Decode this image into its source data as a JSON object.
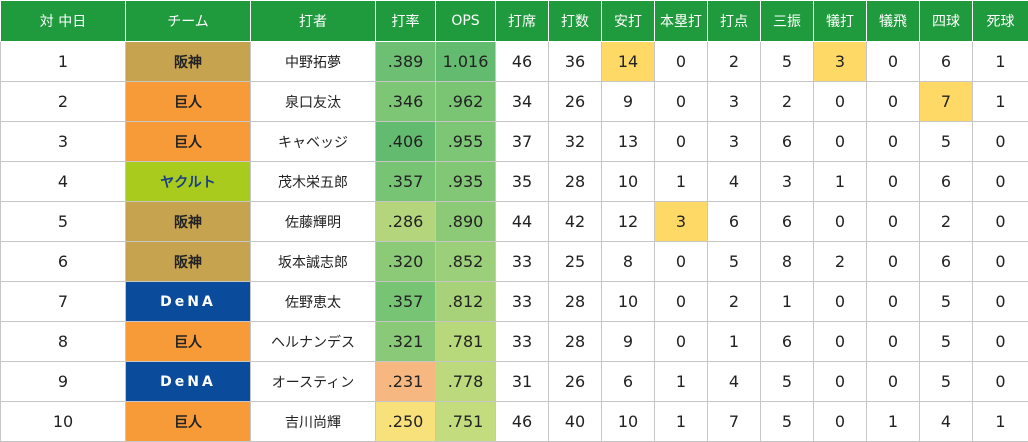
{
  "table": {
    "headers": [
      "対 中日",
      "チーム",
      "打者",
      "打率",
      "OPS",
      "打席",
      "打数",
      "安打",
      "本塁打",
      "打点",
      "三振",
      "犠打",
      "犠飛",
      "四球",
      "死球"
    ],
    "rows": [
      {
        "rank": "1",
        "team": "阪神",
        "batter": "中野拓夢",
        "avg": ".389",
        "ops": "1.016",
        "pa": "46",
        "ab": "36",
        "h": "14",
        "hr": "0",
        "rbi": "2",
        "so": "5",
        "sh": "3",
        "sf": "0",
        "bb": "6",
        "hbp": "1"
      },
      {
        "rank": "2",
        "team": "巨人",
        "batter": "泉口友汰",
        "avg": ".346",
        "ops": ".962",
        "pa": "34",
        "ab": "26",
        "h": "9",
        "hr": "0",
        "rbi": "3",
        "so": "2",
        "sh": "0",
        "sf": "0",
        "bb": "7",
        "hbp": "1"
      },
      {
        "rank": "3",
        "team": "巨人",
        "batter": "キャベッジ",
        "avg": ".406",
        "ops": ".955",
        "pa": "37",
        "ab": "32",
        "h": "13",
        "hr": "0",
        "rbi": "3",
        "so": "6",
        "sh": "0",
        "sf": "0",
        "bb": "5",
        "hbp": "0"
      },
      {
        "rank": "4",
        "team": "ヤクルト",
        "batter": "茂木栄五郎",
        "avg": ".357",
        "ops": ".935",
        "pa": "35",
        "ab": "28",
        "h": "10",
        "hr": "1",
        "rbi": "4",
        "so": "3",
        "sh": "1",
        "sf": "0",
        "bb": "6",
        "hbp": "0"
      },
      {
        "rank": "5",
        "team": "阪神",
        "batter": "佐藤輝明",
        "avg": ".286",
        "ops": ".890",
        "pa": "44",
        "ab": "42",
        "h": "12",
        "hr": "3",
        "rbi": "6",
        "so": "6",
        "sh": "0",
        "sf": "0",
        "bb": "2",
        "hbp": "0"
      },
      {
        "rank": "6",
        "team": "阪神",
        "batter": "坂本誠志郎",
        "avg": ".320",
        "ops": ".852",
        "pa": "33",
        "ab": "25",
        "h": "8",
        "hr": "0",
        "rbi": "5",
        "so": "8",
        "sh": "2",
        "sf": "0",
        "bb": "6",
        "hbp": "0"
      },
      {
        "rank": "7",
        "team": "DeNA",
        "batter": "佐野恵太",
        "avg": ".357",
        "ops": ".812",
        "pa": "33",
        "ab": "28",
        "h": "10",
        "hr": "0",
        "rbi": "2",
        "so": "1",
        "sh": "0",
        "sf": "0",
        "bb": "5",
        "hbp": "0"
      },
      {
        "rank": "8",
        "team": "巨人",
        "batter": "ヘルナンデス",
        "avg": ".321",
        "ops": ".781",
        "pa": "33",
        "ab": "28",
        "h": "9",
        "hr": "0",
        "rbi": "1",
        "so": "6",
        "sh": "0",
        "sf": "0",
        "bb": "5",
        "hbp": "0"
      },
      {
        "rank": "9",
        "team": "DeNA",
        "batter": "オースティン",
        "avg": ".231",
        "ops": ".778",
        "pa": "31",
        "ab": "26",
        "h": "6",
        "hr": "1",
        "rbi": "4",
        "so": "5",
        "sh": "0",
        "sf": "0",
        "bb": "5",
        "hbp": "0"
      },
      {
        "rank": "10",
        "team": "巨人",
        "batter": "吉川尚輝",
        "avg": ".250",
        "ops": ".751",
        "pa": "46",
        "ab": "40",
        "h": "10",
        "hr": "1",
        "rbi": "7",
        "so": "5",
        "sh": "0",
        "sf": "1",
        "bb": "4",
        "hbp": "1"
      }
    ]
  },
  "colors": {
    "header": "#1f9a3c",
    "team_hanshin": "#c6a34e",
    "team_kyojin": "#f79a38",
    "team_yakult": "#a8cb1d",
    "team_dena": "#0a4b9b",
    "highlight": "#ffd966",
    "avg_colors": [
      "#6cbf73",
      "#7dc676",
      "#63bb6f",
      "#78c475",
      "#b5d57c",
      "#8cca78",
      "#78c475",
      "#8ac977",
      "#f7b780",
      "#f8e07b"
    ],
    "ops_colors": [
      "#63bb6f",
      "#7ac574",
      "#7dc676",
      "#82c776",
      "#8dca77",
      "#9bcf79",
      "#a8d27a",
      "#b8d87c",
      "#bcda7d",
      "#c3dc7e"
    ]
  }
}
